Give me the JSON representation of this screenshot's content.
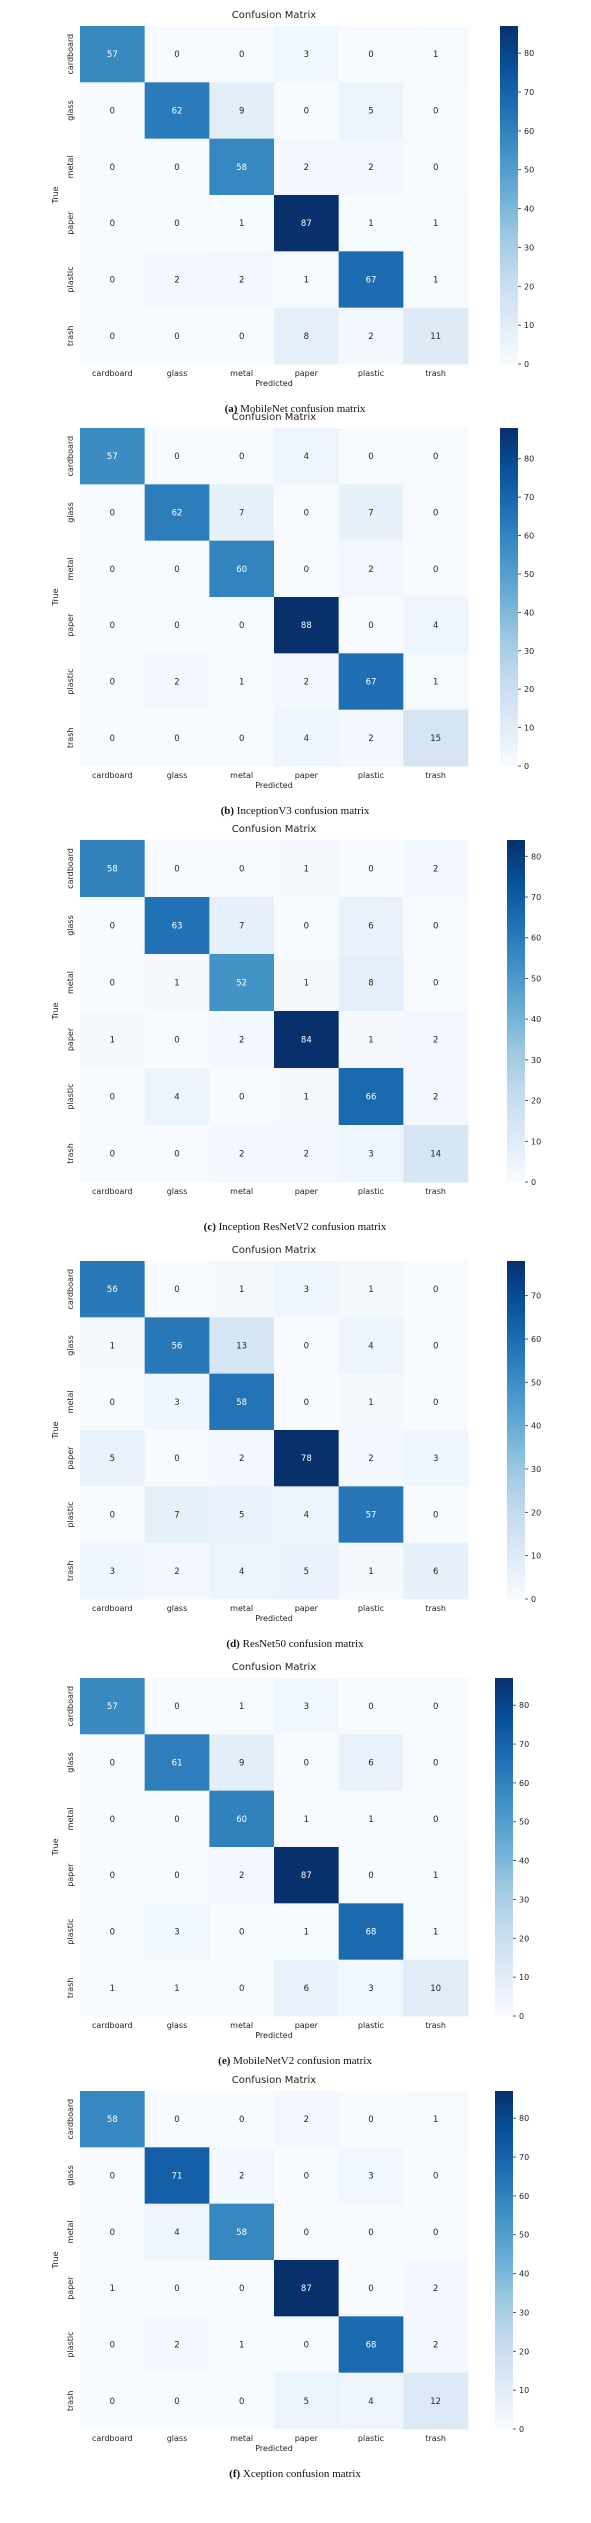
{
  "colors": {
    "cmap_low": "#f7fbff",
    "cmap_high": "#08306b",
    "text_dark": "#262626",
    "text_light": "#ffffff"
  },
  "chart_data": [
    {
      "type": "heatmap",
      "title": "Confusion Matrix",
      "xlabel": "Predicted",
      "ylabel": "True",
      "categories": [
        "cardboard",
        "glass",
        "metal",
        "paper",
        "plastic",
        "trash"
      ],
      "values": [
        [
          57,
          0,
          0,
          3,
          0,
          1
        ],
        [
          0,
          62,
          9,
          0,
          5,
          0
        ],
        [
          0,
          0,
          58,
          2,
          2,
          0
        ],
        [
          0,
          0,
          1,
          87,
          1,
          1
        ],
        [
          0,
          2,
          2,
          1,
          67,
          1
        ],
        [
          0,
          0,
          0,
          8,
          2,
          11
        ]
      ],
      "colorbar_ticks": [
        0,
        10,
        20,
        30,
        40,
        50,
        60,
        70,
        80
      ],
      "vmax": 87,
      "caption_label": "(a)",
      "caption_text": "MobileNet confusion matrix"
    },
    {
      "type": "heatmap",
      "title": "Confusion Matrix",
      "xlabel": "Predicted",
      "ylabel": "True",
      "categories": [
        "cardboard",
        "glass",
        "metal",
        "paper",
        "plastic",
        "trash"
      ],
      "values": [
        [
          57,
          0,
          0,
          4,
          0,
          0
        ],
        [
          0,
          62,
          7,
          0,
          7,
          0
        ],
        [
          0,
          0,
          60,
          0,
          2,
          0
        ],
        [
          0,
          0,
          0,
          88,
          0,
          4
        ],
        [
          0,
          2,
          1,
          2,
          67,
          1
        ],
        [
          0,
          0,
          0,
          4,
          2,
          15
        ]
      ],
      "colorbar_ticks": [
        0,
        10,
        20,
        30,
        40,
        50,
        60,
        70,
        80
      ],
      "vmax": 88,
      "caption_label": "(b)",
      "caption_text": "InceptionV3 confusion matrix"
    },
    {
      "type": "heatmap",
      "title": "Confusion Matrix",
      "xlabel": "",
      "ylabel": "True",
      "categories": [
        "cardboard",
        "glass",
        "metal",
        "paper",
        "plastic",
        "trash"
      ],
      "values": [
        [
          58,
          0,
          0,
          1,
          0,
          2
        ],
        [
          0,
          63,
          7,
          0,
          6,
          0
        ],
        [
          0,
          1,
          52,
          1,
          8,
          0
        ],
        [
          1,
          0,
          2,
          84,
          1,
          2
        ],
        [
          0,
          4,
          0,
          1,
          66,
          2
        ],
        [
          0,
          0,
          2,
          2,
          3,
          14
        ]
      ],
      "colorbar_ticks": [
        0,
        10,
        20,
        30,
        40,
        50,
        60,
        70,
        80
      ],
      "vmax": 84,
      "caption_label": "(c)",
      "caption_text": "Inception ResNetV2 confusion matrix"
    },
    {
      "type": "heatmap",
      "title": "Confusion Matrix",
      "xlabel": "Predicted",
      "ylabel": "True",
      "categories": [
        "cardboard",
        "glass",
        "metal",
        "paper",
        "plastic",
        "trash"
      ],
      "values": [
        [
          56,
          0,
          1,
          3,
          1,
          0
        ],
        [
          1,
          56,
          13,
          0,
          4,
          0
        ],
        [
          0,
          3,
          58,
          0,
          1,
          0
        ],
        [
          5,
          0,
          2,
          78,
          2,
          3
        ],
        [
          0,
          7,
          5,
          4,
          57,
          0
        ],
        [
          3,
          2,
          4,
          5,
          1,
          6
        ]
      ],
      "colorbar_ticks": [
        0,
        10,
        20,
        30,
        40,
        50,
        60,
        70
      ],
      "vmax": 78,
      "caption_label": "(d)",
      "caption_text": "ResNet50 confusion matrix"
    },
    {
      "type": "heatmap",
      "title": "Confusion Matrix",
      "xlabel": "Predicted",
      "ylabel": "True",
      "categories": [
        "cardboard",
        "glass",
        "metal",
        "paper",
        "plastic",
        "trash"
      ],
      "values": [
        [
          57,
          0,
          1,
          3,
          0,
          0
        ],
        [
          0,
          61,
          9,
          0,
          6,
          0
        ],
        [
          0,
          0,
          60,
          1,
          1,
          0
        ],
        [
          0,
          0,
          2,
          87,
          0,
          1
        ],
        [
          0,
          3,
          0,
          1,
          68,
          1
        ],
        [
          1,
          1,
          0,
          6,
          3,
          10
        ]
      ],
      "colorbar_ticks": [
        0,
        10,
        20,
        30,
        40,
        50,
        60,
        70,
        80
      ],
      "vmax": 87,
      "caption_label": "(e)",
      "caption_text": "MobileNetV2 confusion matrix"
    },
    {
      "type": "heatmap",
      "title": "Confusion Matrix",
      "xlabel": "Predicted",
      "ylabel": "True",
      "categories": [
        "cardboard",
        "glass",
        "metal",
        "paper",
        "plastic",
        "trash"
      ],
      "values": [
        [
          58,
          0,
          0,
          2,
          0,
          1
        ],
        [
          0,
          71,
          2,
          0,
          3,
          0
        ],
        [
          0,
          4,
          58,
          0,
          0,
          0
        ],
        [
          1,
          0,
          0,
          87,
          0,
          2
        ],
        [
          0,
          2,
          1,
          0,
          68,
          2
        ],
        [
          0,
          0,
          0,
          5,
          4,
          12
        ]
      ],
      "colorbar_ticks": [
        0,
        10,
        20,
        30,
        40,
        50,
        60,
        70,
        80
      ],
      "vmax": 87,
      "caption_label": "(f)",
      "caption_text": "Xception confusion matrix"
    }
  ]
}
